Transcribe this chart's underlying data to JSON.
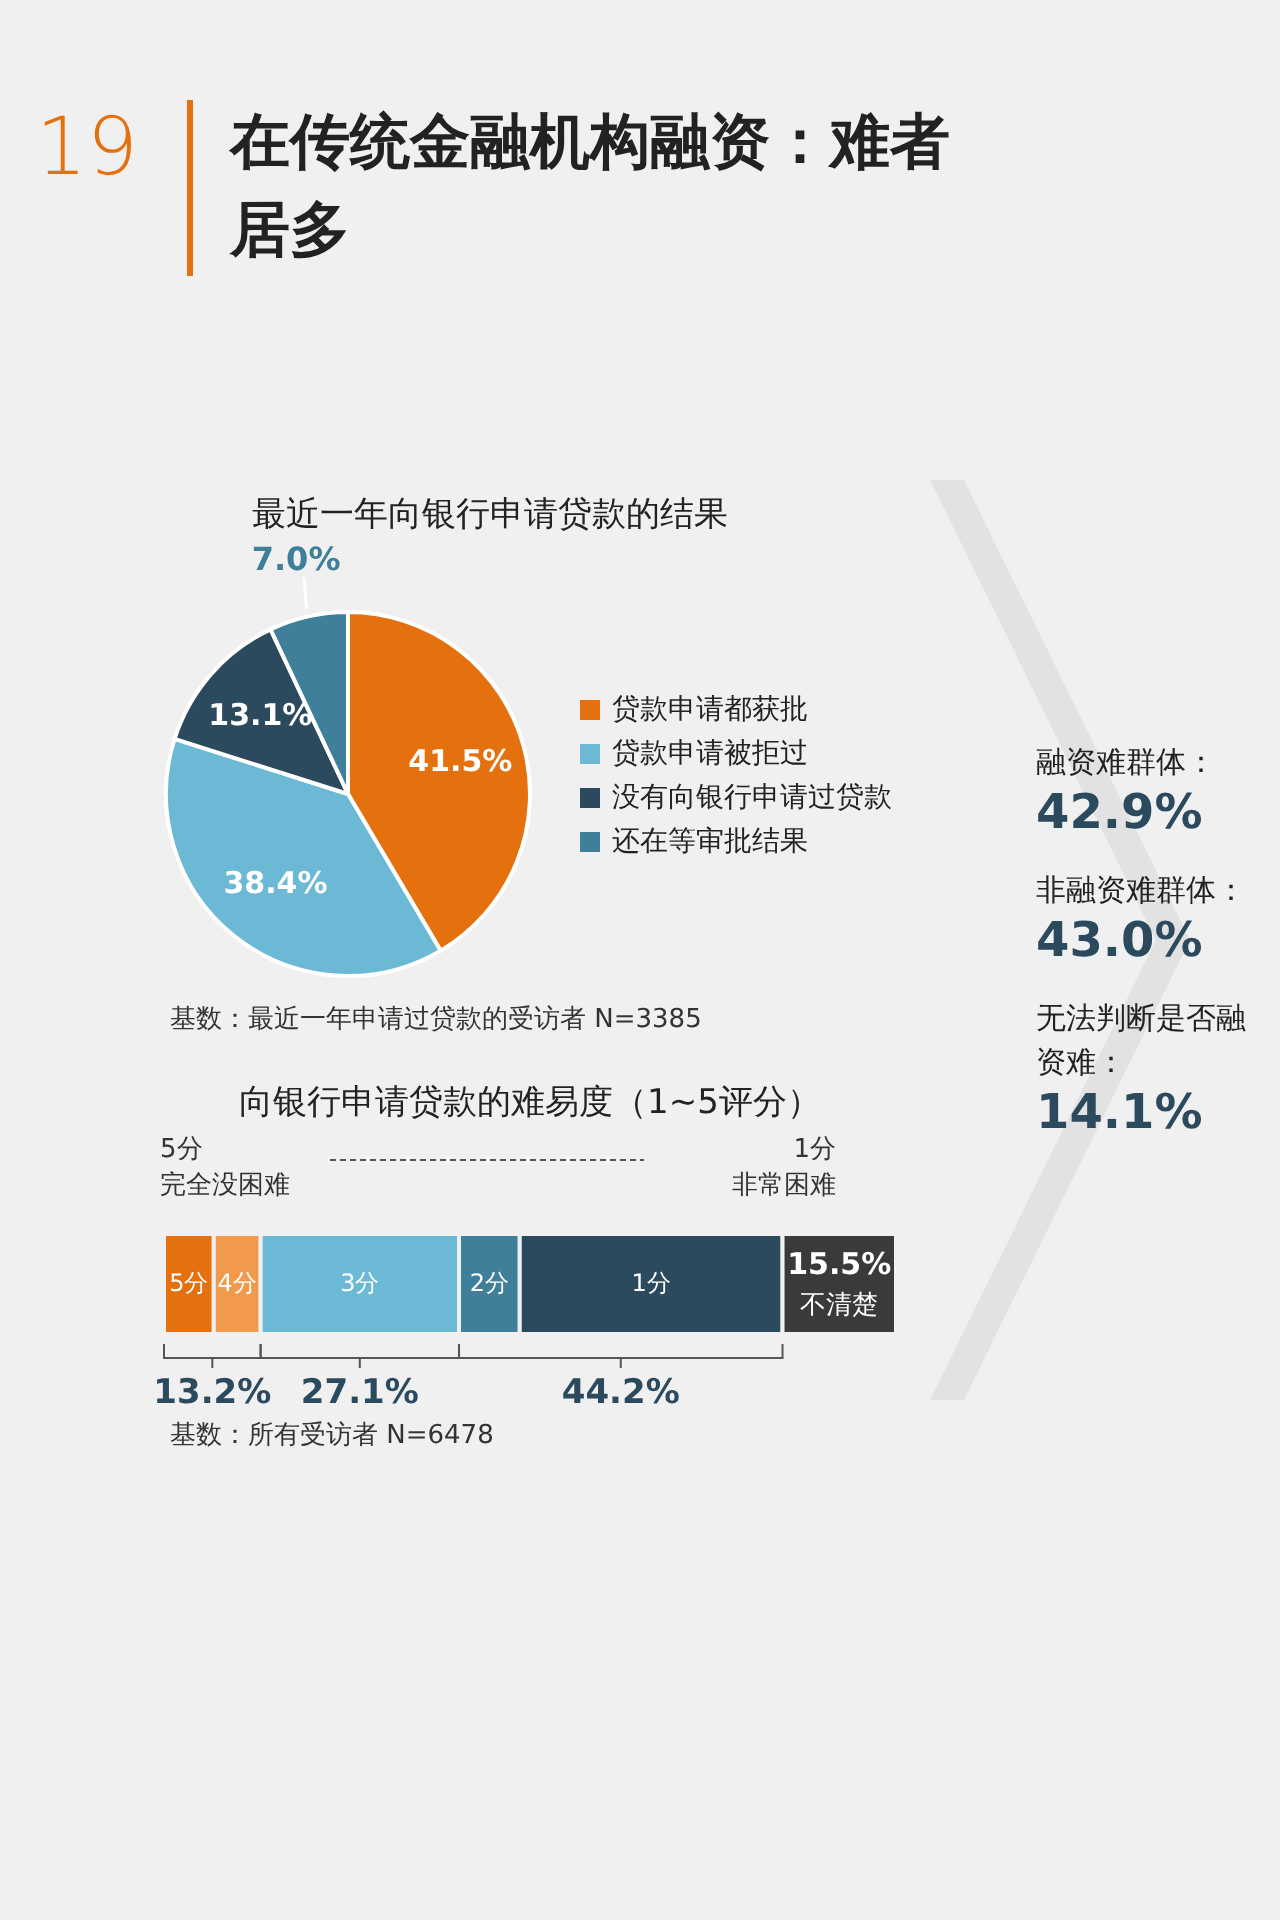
{
  "chart_data": [
    {
      "type": "pie",
      "title": "在传统金融机构融资：难者居多",
      "subtitle": "最近一年向银行申请贷款的结果",
      "categories": [
        "贷款申请都获批",
        "贷款申请被拒过",
        "没有向银行申请过贷款",
        "还在等审批结果"
      ],
      "values": [
        41.5,
        38.4,
        13.1,
        7.0
      ],
      "colors": [
        "#e5700e",
        "#6bb9d4",
        "#2c4a5d",
        "#3f7f99"
      ],
      "value_labels": [
        "41.5%",
        "38.4%",
        "13.1%",
        "7.0%"
      ],
      "legend": "right",
      "annotations": [
        "19",
        "基数：最近一年申请过贷款的受访者 N=3385"
      ]
    },
    {
      "type": "bar",
      "orientation": "horizontal",
      "stacked": true,
      "title": "向银行申请贷款的难易度（1~5评分）",
      "categories": [
        null
      ],
      "series": [
        {
          "name": "5分",
          "color": "#e5700e",
          "values": [
            6.8
          ]
        },
        {
          "name": "4分",
          "color": "#f29a4c",
          "values": [
            6.4
          ]
        },
        {
          "name": "3分",
          "color": "#6bb9d4",
          "values": [
            27.1
          ]
        },
        {
          "name": "2分",
          "color": "#3f7f99",
          "values": [
            8.3
          ]
        },
        {
          "name": "1分",
          "color": "#2c4a5d",
          "values": [
            35.9
          ]
        },
        {
          "name": "不清楚",
          "color": "#3a3a3a",
          "values": [
            15.5
          ],
          "value_labels": [
            "15.5%"
          ]
        }
      ],
      "annotations": [
        "5分",
        "完全没困难",
        "1分",
        "非常困难",
        "13.2%",
        "27.1%",
        "44.2%",
        "基数：所有受访者 N=6478"
      ]
    },
    {
      "type": "other",
      "annotations": [
        "融资难群体：",
        "42.9%",
        "非融资难群体：",
        "43.0%",
        "无法判断是否融资难：",
        "14.1%"
      ]
    }
  ]
}
